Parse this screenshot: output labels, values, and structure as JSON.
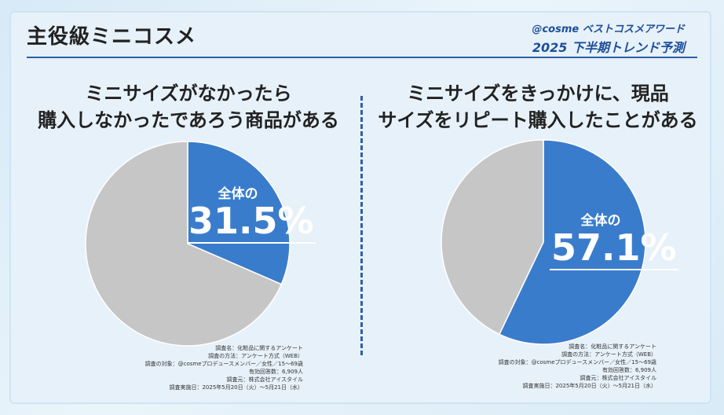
{
  "page": {
    "title": "主役級ミニコスメ",
    "brand_line1": "@cosme ベストコスメアワード",
    "brand_line2": "2025 下半期トレンド予測"
  },
  "colors": {
    "blue": "#3a7ccc",
    "gray": "#c6c6c6",
    "accent": "#1d4f9a"
  },
  "chart_data": [
    {
      "type": "pie",
      "title": "ミニサイズがなかったら\n購入しなかったであろう商品がある",
      "slices": [
        {
          "label": "全体の",
          "value": 31.5,
          "color": "#3a7ccc"
        },
        {
          "label": "",
          "value": 68.5,
          "color": "#c6c6c6"
        }
      ],
      "annotation_label": "全体の",
      "annotation_value": "31.5%"
    },
    {
      "type": "pie",
      "title": "ミニサイズをきっかけに、現品\nサイズをリピート購入したことがある",
      "slices": [
        {
          "label": "全体の",
          "value": 57.1,
          "color": "#3a7ccc"
        },
        {
          "label": "",
          "value": 42.9,
          "color": "#c6c6c6"
        }
      ],
      "annotation_label": "全体の",
      "annotation_value": "57.1%"
    }
  ],
  "survey_notes": [
    "調査名：化粧品に関するアンケート",
    "調査の方法：アンケート方式（WEB）",
    "調査の対象：@cosmeプロデュースメンバー／女性／15～69歳",
    "有効回答数：6,909人",
    "調査元：株式会社アイスタイル",
    "調査実施日：2025年5月20日（火）～5月21日（水）"
  ]
}
